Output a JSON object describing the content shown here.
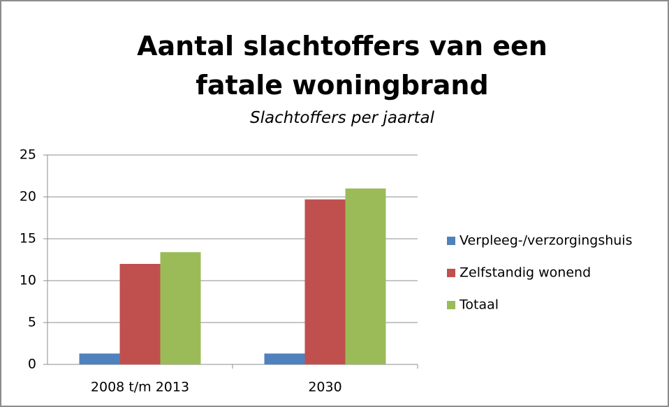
{
  "chart_data": {
    "type": "bar",
    "title": "Aantal slachtoffers van een fatale woningbrand",
    "subtitle": "Slachtoffers per jaartal",
    "categories": [
      "2008 t/m 2013",
      "2030"
    ],
    "series": [
      {
        "name": "Verpleeg-/verzorgingshuis",
        "color": "#4f81bd",
        "values": [
          1.3,
          1.3
        ]
      },
      {
        "name": "Zelfstandig wonend",
        "color": "#c0504d",
        "values": [
          12,
          19.7
        ]
      },
      {
        "name": "Totaal",
        "color": "#9bbb59",
        "values": [
          13.4,
          21
        ]
      }
    ],
    "ylim": [
      0,
      25
    ],
    "yticks": [
      0,
      5,
      10,
      15,
      20,
      25
    ],
    "grid": true,
    "legend": "right"
  }
}
